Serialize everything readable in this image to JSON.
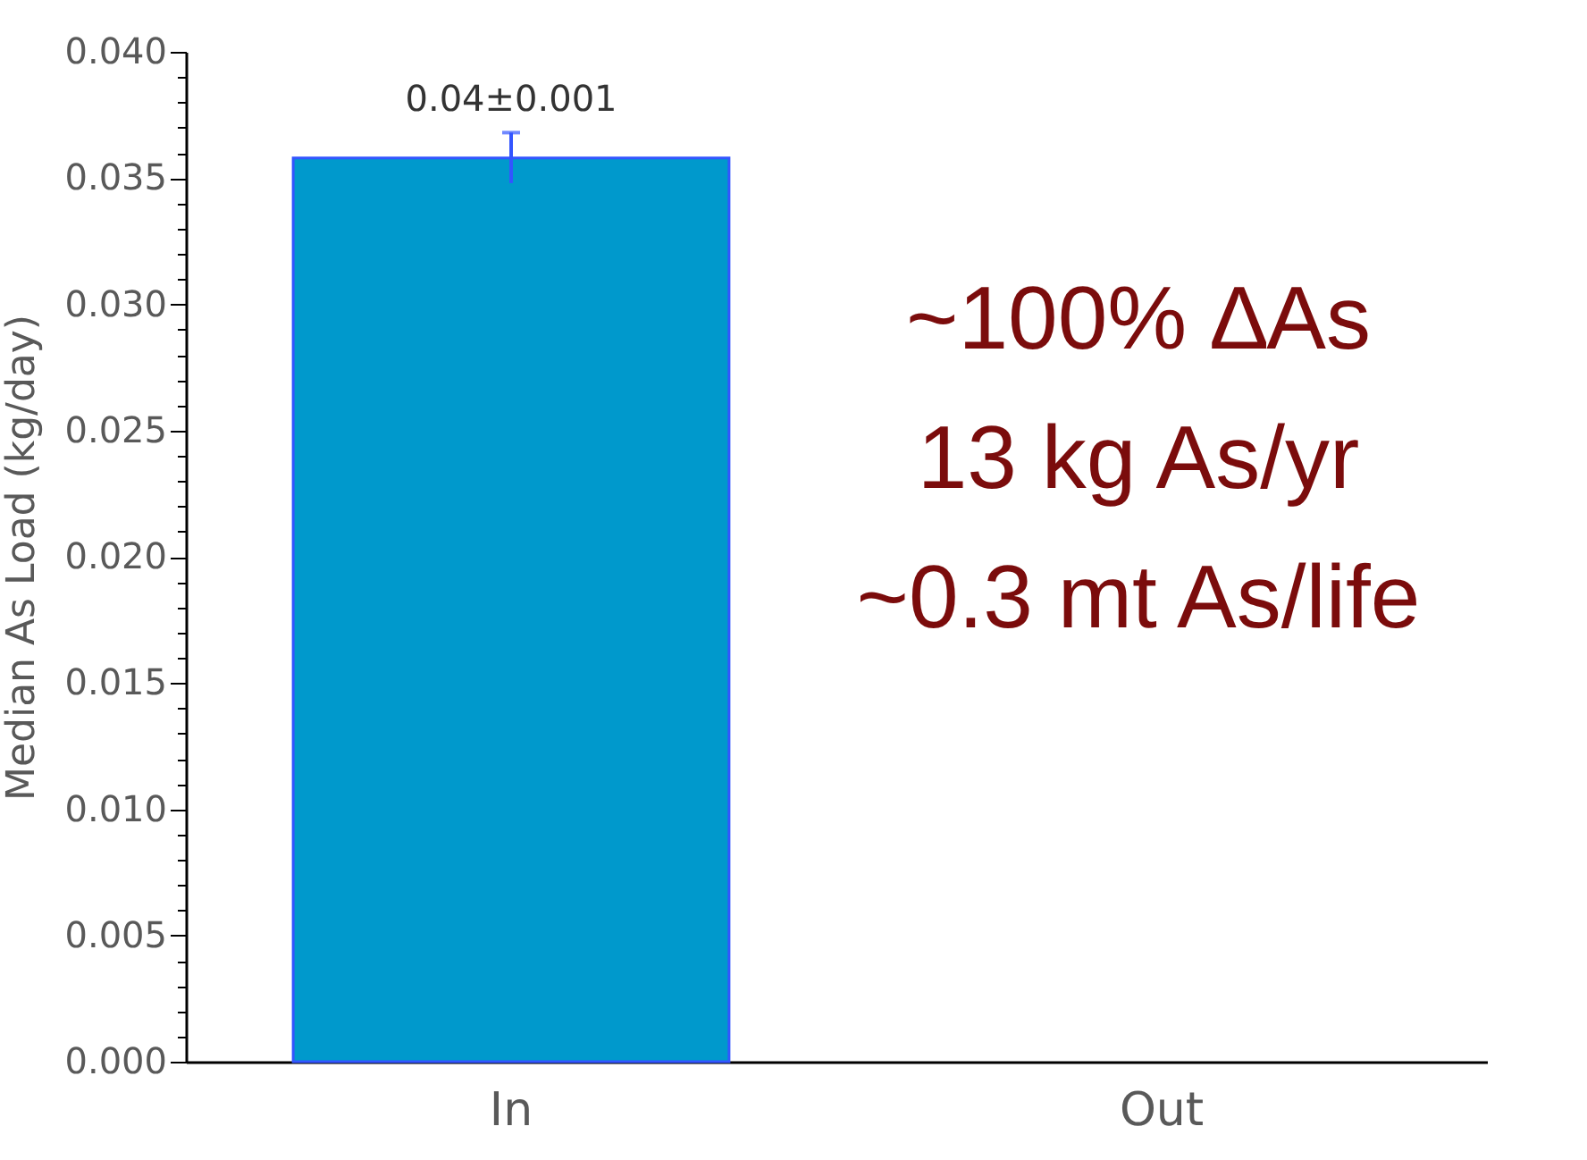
{
  "chart_data": {
    "type": "bar",
    "ylabel": "Median As Load (kg/day)",
    "categories": [
      "In",
      "Out"
    ],
    "values": [
      0.0358,
      null
    ],
    "errors": [
      0.001,
      null
    ],
    "value_labels": [
      "0.04±0.001",
      null
    ],
    "color": "#0099cc",
    "ylim": [
      0,
      0.04
    ],
    "yticks": [
      {
        "value": 0,
        "label": "0.000"
      },
      {
        "value": 0.001,
        "label": null
      },
      {
        "value": 0.002,
        "label": null
      },
      {
        "value": 0.003,
        "label": null
      },
      {
        "value": 0.004,
        "label": null
      },
      {
        "value": 0.005,
        "label": "0.005"
      },
      {
        "value": 0.006,
        "label": null
      },
      {
        "value": 0.007,
        "label": null
      },
      {
        "value": 0.008,
        "label": null
      },
      {
        "value": 0.009,
        "label": null
      },
      {
        "value": 0.01,
        "label": "0.010"
      },
      {
        "value": 0.011,
        "label": null
      },
      {
        "value": 0.012,
        "label": null
      },
      {
        "value": 0.013,
        "label": null
      },
      {
        "value": 0.014,
        "label": null
      },
      {
        "value": 0.015,
        "label": "0.015"
      },
      {
        "value": 0.016,
        "label": null
      },
      {
        "value": 0.017,
        "label": null
      },
      {
        "value": 0.018,
        "label": null
      },
      {
        "value": 0.019,
        "label": null
      },
      {
        "value": 0.02,
        "label": "0.020"
      },
      {
        "value": 0.021,
        "label": null
      },
      {
        "value": 0.022,
        "label": null
      },
      {
        "value": 0.023,
        "label": null
      },
      {
        "value": 0.024,
        "label": null
      },
      {
        "value": 0.025,
        "label": "0.025"
      },
      {
        "value": 0.026,
        "label": null
      },
      {
        "value": 0.027,
        "label": null
      },
      {
        "value": 0.028,
        "label": null
      },
      {
        "value": 0.029,
        "label": null
      },
      {
        "value": 0.03,
        "label": "0.030"
      },
      {
        "value": 0.031,
        "label": null
      },
      {
        "value": 0.032,
        "label": null
      },
      {
        "value": 0.033,
        "label": null
      },
      {
        "value": 0.034,
        "label": null
      },
      {
        "value": 0.035,
        "label": "0.035"
      },
      {
        "value": 0.036,
        "label": null
      },
      {
        "value": 0.037,
        "label": null
      },
      {
        "value": 0.038,
        "label": null
      },
      {
        "value": 0.039,
        "label": null
      },
      {
        "value": 0.04,
        "label": "0.040"
      }
    ],
    "grid": false,
    "annotations": [
      "~100% ∆As",
      "13 kg As/yr",
      "~0.3 mt As/life"
    ]
  }
}
